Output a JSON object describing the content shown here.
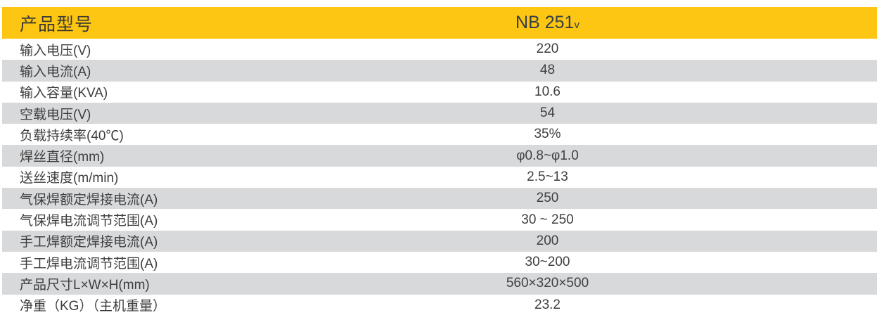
{
  "table": {
    "header": {
      "label": "产品型号",
      "model": "NB 251",
      "model_suffix": "v"
    },
    "rows": [
      {
        "label": "输入电压(V)",
        "value": "220"
      },
      {
        "label": "输入电流(A)",
        "value": "48"
      },
      {
        "label": "输入容量(KVA)",
        "value": "10.6"
      },
      {
        "label": "空载电压(V)",
        "value": "54"
      },
      {
        "label": "负载持续率(40℃)",
        "value": "35%"
      },
      {
        "label": "焊丝直径(mm)",
        "value": "φ0.8~φ1.0"
      },
      {
        "label": "送丝速度(m/min)",
        "value": "2.5~13"
      },
      {
        "label": "气保焊额定焊接电流(A)",
        "value": "250"
      },
      {
        "label": "气保焊电流调节范围(A)",
        "value": "30 ~ 250"
      },
      {
        "label": "手工焊额定焊接电流(A)",
        "value": "200"
      },
      {
        "label": "手工焊电流调节范围(A)",
        "value": "30~200"
      },
      {
        "label": "产品尺寸L×W×H(mm)",
        "value": "560×320×500"
      },
      {
        "label": "净重（KG）（主机重量）",
        "value": "23.2"
      }
    ]
  },
  "colors": {
    "header-bg": "#FCC613",
    "stripe-bg": "#D8D9DB",
    "header-text": "#3A3A32",
    "model-text": "#343E46",
    "label-text": "#3E3E3E",
    "value-text": "#404040"
  }
}
